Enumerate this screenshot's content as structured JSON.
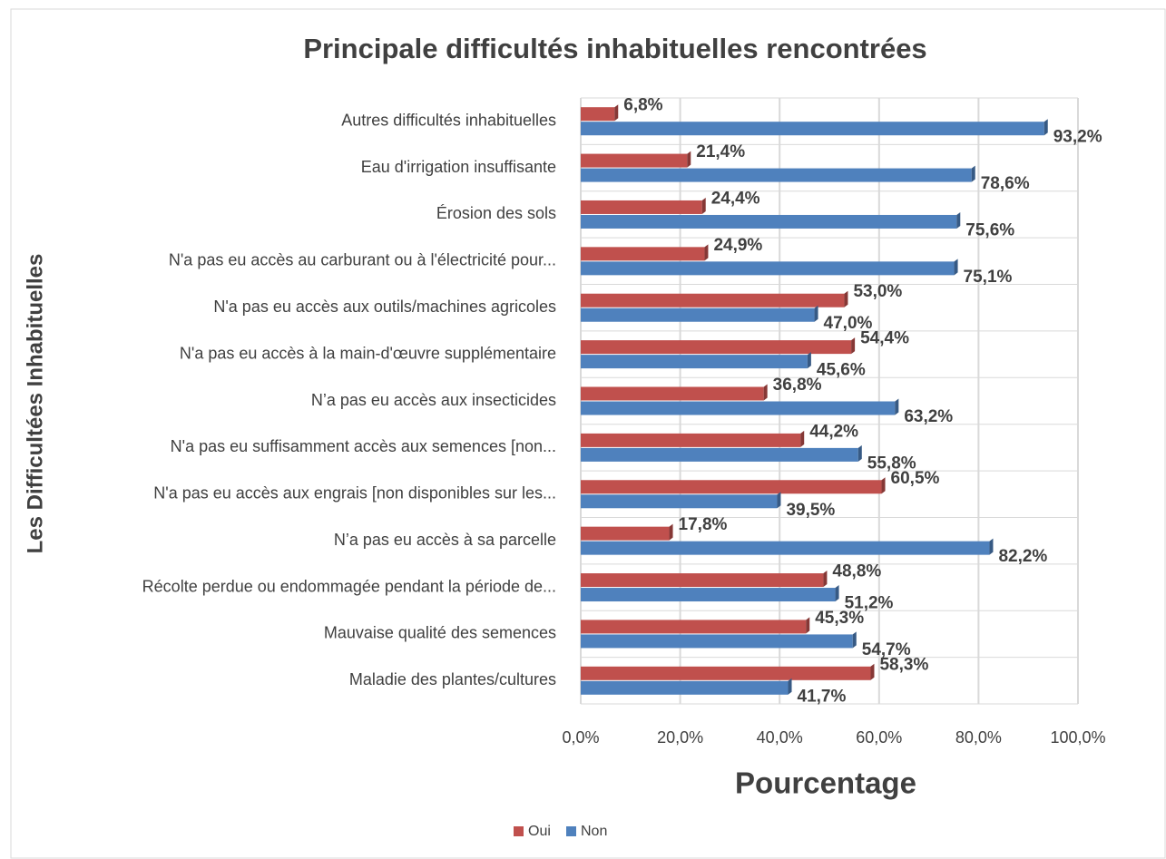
{
  "chart_data": {
    "type": "hbar",
    "title": "Principale difficultés inhabituelles rencontrées",
    "xlabel": "Pourcentage",
    "ylabel": "Les Difficultées Inhabituelles",
    "categories": [
      "Autres difficultés inhabituelles",
      "Eau d'irrigation insuffisante",
      "Érosion des sols",
      "N'a pas eu accès au carburant ou à l'électricité pour...",
      "N'a pas eu accès aux outils/machines agricoles",
      "N'a pas eu accès à la main-d'œuvre supplémentaire",
      "N’a pas eu accès aux insecticides",
      "N'a pas eu suffisamment accès aux semences [non...",
      "N'a pas eu accès aux engrais [non disponibles sur les...",
      "N’a pas eu accès à sa parcelle",
      "Récolte perdue ou endommagée pendant la période de...",
      "Mauvaise qualité des semences",
      "Maladie des plantes/cultures"
    ],
    "series": [
      {
        "name": "Oui",
        "color": "#c0504d",
        "values": [
          6.8,
          21.4,
          24.4,
          24.9,
          53.0,
          54.4,
          36.8,
          44.2,
          60.5,
          17.8,
          48.8,
          45.3,
          58.3
        ],
        "value_labels": [
          "6,8%",
          "21,4%",
          "24,4%",
          "24,9%",
          "53,0%",
          "54,4%",
          "36,8%",
          "44,2%",
          "60,5%",
          "17,8%",
          "48,8%",
          "45,3%",
          "58,3%"
        ]
      },
      {
        "name": "Non",
        "color": "#4f81bd",
        "values": [
          93.2,
          78.6,
          75.6,
          75.1,
          47.0,
          45.6,
          63.2,
          55.8,
          39.5,
          82.2,
          51.2,
          54.7,
          41.7
        ],
        "value_labels": [
          "93,2%",
          "78,6%",
          "75,6%",
          "75,1%",
          "47,0%",
          "45,6%",
          "63,2%",
          "55,8%",
          "39,5%",
          "82,2%",
          "51,2%",
          "54,7%",
          "41,7%"
        ]
      }
    ],
    "xlim": [
      0,
      100
    ],
    "xticks": [
      {
        "value": 0,
        "label": "0,0%"
      },
      {
        "value": 20,
        "label": "20,0%"
      },
      {
        "value": 40,
        "label": "40,0%"
      },
      {
        "value": 60,
        "label": "60,0%"
      },
      {
        "value": 80,
        "label": "80,0%"
      },
      {
        "value": 100,
        "label": "100,0%"
      }
    ],
    "grid": true,
    "legend": "bottom"
  }
}
